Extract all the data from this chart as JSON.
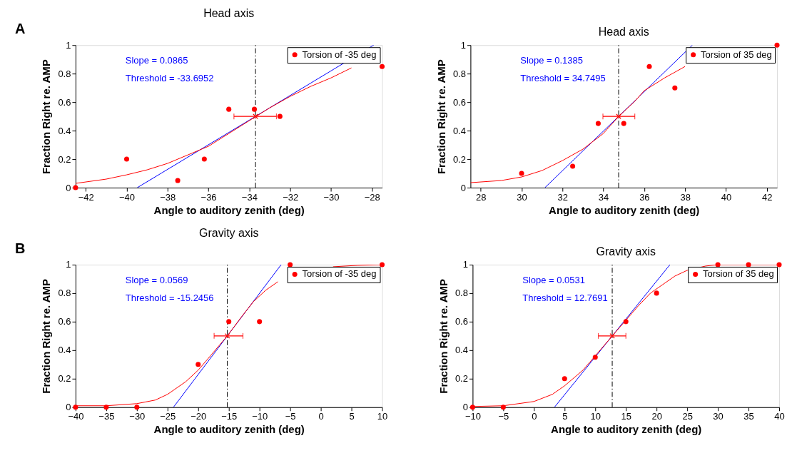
{
  "chart_data": [
    {
      "type": "scatter",
      "title": "Head axis",
      "xlabel": "Angle to auditory zenith (deg)",
      "ylabel": "Fraction Right re. AMP",
      "xlim": [
        -42.5,
        -27.5
      ],
      "xticks": [
        -42,
        -40,
        -38,
        -36,
        -34,
        -32,
        -30,
        -28
      ],
      "ylim": [
        0,
        1
      ],
      "yticks": [
        0,
        0.2,
        0.4,
        0.6,
        0.8,
        1
      ],
      "grid": false,
      "legend": "top right",
      "annotations": [
        "Slope = 0.0865",
        "Threshold = -33.6952",
        "A"
      ],
      "ref_lines": [
        {
          "axis": "x",
          "value": -33.6952,
          "color": "#000000",
          "line_style": "dashed"
        }
      ],
      "series": [
        {
          "type": "line",
          "color": "#ff0000",
          "marker": "none",
          "x": [
            -42.5,
            -41,
            -40,
            -39,
            -38,
            -37,
            -36,
            -35,
            -34,
            -33,
            -32,
            -31,
            -30,
            -29
          ],
          "values": [
            0.03,
            0.06,
            0.09,
            0.125,
            0.17,
            0.23,
            0.29,
            0.38,
            0.47,
            0.56,
            0.64,
            0.71,
            0.77,
            0.84
          ]
        },
        {
          "type": "line",
          "color": "#0000ff",
          "marker": "none",
          "x": [
            -39.48,
            -27.91
          ],
          "values": [
            0,
            1
          ]
        },
        {
          "type": "scatter",
          "color": "#ff0000",
          "marker": "cross",
          "x": [
            -33.6952
          ],
          "values": [
            0.5
          ],
          "xerrors": [
            [
              -34.75,
              -32.67
            ]
          ]
        },
        {
          "type": "scatter",
          "name": "Torsion of -35 deg",
          "color": "#ff0000",
          "marker": "circle",
          "x": [
            -42.5,
            -40,
            -37.5,
            -36.2,
            -35,
            -33.75,
            -32.5,
            -27.5
          ],
          "values": [
            0,
            0.2,
            0.05,
            0.2,
            0.55,
            0.55,
            0.5,
            0.85
          ]
        }
      ]
    },
    {
      "type": "scatter",
      "title": "Head axis",
      "xlabel": "Angle to auditory zenith (deg)",
      "ylabel": "Fraction Right re. AMP",
      "xlim": [
        27.5,
        42.5
      ],
      "xticks": [
        28,
        30,
        32,
        34,
        36,
        38,
        40,
        42
      ],
      "ylim": [
        0,
        1
      ],
      "yticks": [
        0,
        0.2,
        0.4,
        0.6,
        0.8,
        1
      ],
      "grid": false,
      "legend": "top right",
      "annotations": [
        "Slope = 0.1385",
        "Threshold = 34.7495"
      ],
      "ref_lines": [
        {
          "axis": "x",
          "value": 34.7495,
          "color": "#000000",
          "line_style": "dashed"
        }
      ],
      "series": [
        {
          "type": "line",
          "color": "#ff0000",
          "marker": "none",
          "x": [
            27.5,
            29,
            30,
            31,
            32,
            33,
            34,
            34.75,
            35.5,
            36,
            37,
            38
          ],
          "values": [
            0.035,
            0.05,
            0.075,
            0.12,
            0.19,
            0.27,
            0.38,
            0.5,
            0.6,
            0.68,
            0.77,
            0.85
          ]
        },
        {
          "type": "line",
          "color": "#0000ff",
          "marker": "none",
          "x": [
            31.14,
            38.36
          ],
          "values": [
            0,
            1
          ]
        },
        {
          "type": "scatter",
          "color": "#ff0000",
          "marker": "cross",
          "x": [
            34.7495
          ],
          "values": [
            0.5
          ],
          "xerrors": [
            [
              33.98,
              35.54
            ]
          ]
        },
        {
          "type": "scatter",
          "name": "Torsion of 35 deg",
          "color": "#ff0000",
          "marker": "circle",
          "x": [
            30,
            32.5,
            33.75,
            35,
            36.25,
            37.5,
            42.5
          ],
          "values": [
            0.1,
            0.15,
            0.45,
            0.45,
            0.85,
            0.7,
            1.0
          ]
        }
      ]
    },
    {
      "type": "scatter",
      "title": "Gravity axis",
      "xlabel": "Angle to auditory zenith (deg)",
      "ylabel": "Fraction Right re. AMP",
      "xlim": [
        -40,
        10
      ],
      "xticks": [
        -40,
        -35,
        -30,
        -25,
        -20,
        -15,
        -10,
        -5,
        0,
        5,
        10
      ],
      "ylim": [
        0,
        1
      ],
      "yticks": [
        0,
        0.2,
        0.4,
        0.6,
        0.8,
        1
      ],
      "grid": false,
      "legend": "top right",
      "annotations": [
        "Slope = 0.0569",
        "Threshold = -15.2456",
        "B"
      ],
      "ref_lines": [
        {
          "axis": "x",
          "value": -15.2456,
          "color": "#000000",
          "line_style": "dashed"
        }
      ],
      "series": [
        {
          "type": "line",
          "color": "#ff0000",
          "marker": "none",
          "x": [
            -40,
            -35,
            -30,
            -27,
            -25,
            -22,
            -20,
            -18,
            -15.25,
            -13,
            -11,
            -9,
            -7,
            -5,
            -2,
            2,
            6,
            10
          ],
          "values": [
            0.01,
            0.01,
            0.025,
            0.05,
            0.09,
            0.18,
            0.26,
            0.36,
            0.5,
            0.63,
            0.74,
            0.82,
            0.88,
            null,
            null,
            0.985,
            0.995,
            1.0
          ]
        },
        {
          "type": "line",
          "color": "#0000ff",
          "marker": "none",
          "x": [
            -24.03,
            -6.46
          ],
          "values": [
            0,
            1
          ]
        },
        {
          "type": "scatter",
          "color": "#ff0000",
          "marker": "cross",
          "x": [
            -15.2456
          ],
          "values": [
            0.5
          ],
          "xerrors": [
            [
              -17.4,
              -12.7
            ]
          ]
        },
        {
          "type": "scatter",
          "name": "Torsion of -35 deg",
          "color": "#ff0000",
          "marker": "circle",
          "x": [
            -40,
            -35,
            -30,
            -20,
            -15,
            -10,
            -5,
            10
          ],
          "values": [
            0,
            0,
            0,
            0.3,
            0.6,
            0.6,
            1,
            1
          ]
        }
      ]
    },
    {
      "type": "scatter",
      "title": "Gravity axis",
      "xlabel": "Angle to auditory zenith (deg)",
      "ylabel": "Fraction Right re. AMP",
      "xlim": [
        -10,
        40
      ],
      "xticks": [
        -10,
        -5,
        0,
        5,
        10,
        15,
        20,
        25,
        30,
        35,
        40
      ],
      "ylim": [
        0,
        1
      ],
      "yticks": [
        0,
        0.2,
        0.4,
        0.6,
        0.8,
        1
      ],
      "grid": false,
      "legend": "top right",
      "annotations": [
        "Slope = 0.0531",
        "Threshold = 12.7691"
      ],
      "ref_lines": [
        {
          "axis": "x",
          "value": 12.7691,
          "color": "#000000",
          "line_style": "dashed"
        }
      ],
      "series": [
        {
          "type": "line",
          "color": "#ff0000",
          "marker": "none",
          "x": [
            -10,
            -5,
            0,
            3,
            5,
            8,
            10,
            12.77,
            15,
            17,
            19,
            21,
            23,
            25,
            28,
            30,
            40
          ],
          "values": [
            0.005,
            0.01,
            0.04,
            0.09,
            0.15,
            0.26,
            0.36,
            0.5,
            0.61,
            0.71,
            0.8,
            0.86,
            0.92,
            0.96,
            0.99,
            1.0,
            1.0
          ]
        },
        {
          "type": "line",
          "color": "#0000ff",
          "marker": "none",
          "x": [
            3.35,
            22.19
          ],
          "values": [
            0,
            1
          ]
        },
        {
          "type": "scatter",
          "color": "#ff0000",
          "marker": "cross",
          "x": [
            12.7691
          ],
          "values": [
            0.5
          ],
          "xerrors": [
            [
              10.5,
              15.0
            ]
          ]
        },
        {
          "type": "scatter",
          "name": "Torsion of 35 deg",
          "color": "#ff0000",
          "marker": "circle",
          "x": [
            -10,
            -5,
            5,
            10,
            15,
            20,
            30,
            35,
            40
          ],
          "values": [
            0,
            0,
            0.2,
            0.35,
            0.6,
            0.8,
            1,
            1,
            1
          ]
        }
      ]
    }
  ]
}
